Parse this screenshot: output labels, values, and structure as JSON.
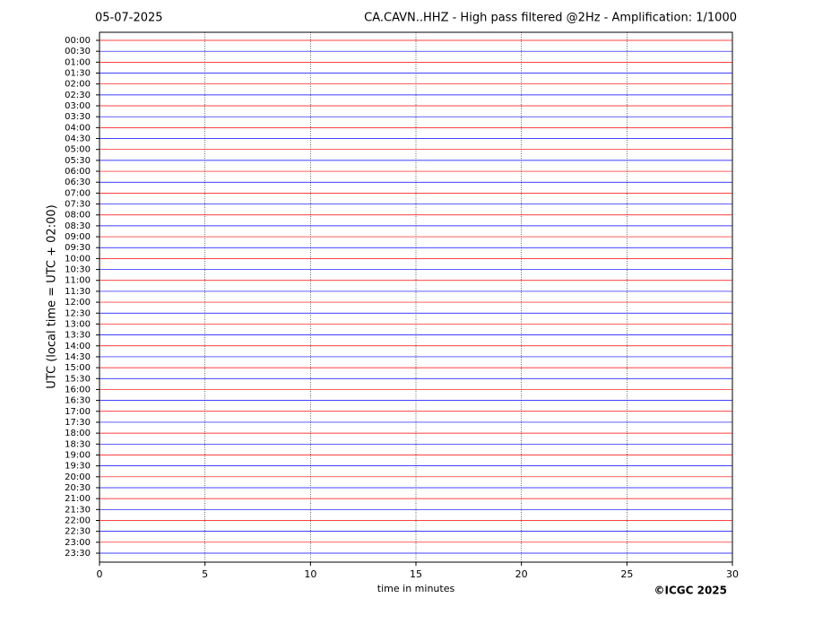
{
  "chart_data": {
    "type": "helicorder",
    "date": "05-07-2025",
    "title": "CA.CAVN..HHZ - High pass filtered @2Hz - Amplification: 1/1000",
    "ylabel": "UTC (local time = UTC + 02:00)",
    "xlabel": "time in minutes",
    "copyright": "©ICGC 2025",
    "categories": [
      "00:00",
      "00:30",
      "01:00",
      "01:30",
      "02:00",
      "02:30",
      "03:00",
      "03:30",
      "04:00",
      "04:30",
      "05:00",
      "05:30",
      "06:00",
      "06:30",
      "07:00",
      "07:30",
      "08:00",
      "08:30",
      "09:00",
      "09:30",
      "10:00",
      "10:30",
      "11:00",
      "11:30",
      "12:00",
      "12:30",
      "13:00",
      "13:30",
      "14:00",
      "14:30",
      "15:00",
      "15:30",
      "16:00",
      "16:30",
      "17:00",
      "17:30",
      "18:00",
      "18:30",
      "19:00",
      "19:30",
      "20:00",
      "20:30",
      "21:00",
      "21:30",
      "22:00",
      "22:30",
      "23:00",
      "23:30"
    ],
    "colors": [
      "#ff0000",
      "#0000ff"
    ],
    "xlim": [
      0,
      30
    ],
    "xticks": [
      0,
      5,
      10,
      15,
      20,
      25,
      30
    ],
    "grid": true
  }
}
